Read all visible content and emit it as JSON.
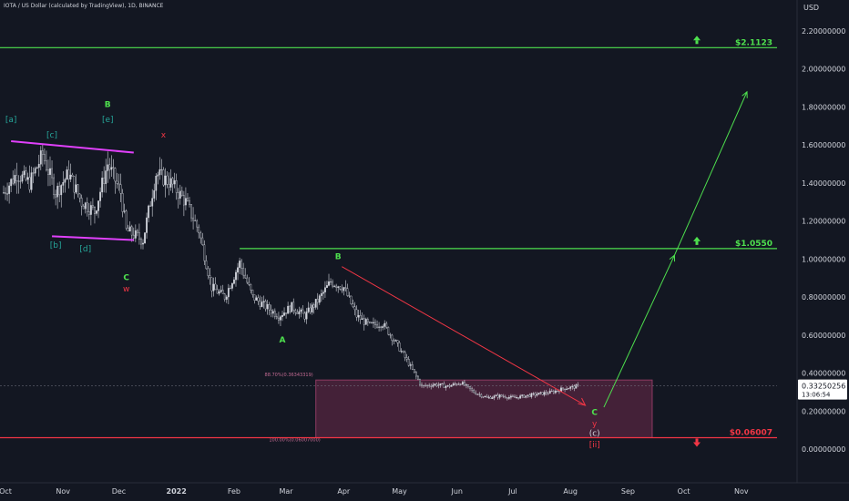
{
  "header": {
    "title": "IOTA / US Dollar (calculated by TradingView), 1D, BINANCE",
    "currency": "USD"
  },
  "colors": {
    "background": "#131722",
    "bull": "#4ee14e",
    "bear": "#f23645",
    "magenta": "#e040fb",
    "zone": "#6d2a4a",
    "teal": "#26a69a",
    "candle": "#d1d4dc"
  },
  "chart_data": {
    "type": "candlestick",
    "y_axis": {
      "min": 0,
      "max": 2.3,
      "unit": "USD",
      "ticks": [
        "0.00000000",
        "0.20000000",
        "0.40000000",
        "0.60000000",
        "0.80000000",
        "1.00000000",
        "1.20000000",
        "1.40000000",
        "1.60000000",
        "1.80000000",
        "2.00000000",
        "2.20000000"
      ]
    },
    "x_axis": {
      "ticks": [
        "Oct",
        "Nov",
        "Dec",
        "2022",
        "Feb",
        "Mar",
        "Apr",
        "May",
        "Jun",
        "Jul",
        "Aug",
        "Sep",
        "Oct",
        "Nov"
      ]
    },
    "current_price": {
      "value": 0.33250256,
      "label": "0.33250256",
      "countdown": "13:06:54"
    },
    "close_series": [
      {
        "x": "2021-10-01",
        "y": 1.35
      },
      {
        "x": "2021-10-08",
        "y": 1.45
      },
      {
        "x": "2021-10-15",
        "y": 1.4
      },
      {
        "x": "2021-10-22",
        "y": 1.55
      },
      {
        "x": "2021-10-29",
        "y": 1.35
      },
      {
        "x": "2021-11-05",
        "y": 1.45
      },
      {
        "x": "2021-11-12",
        "y": 1.3
      },
      {
        "x": "2021-11-19",
        "y": 1.25
      },
      {
        "x": "2021-11-26",
        "y": 1.5
      },
      {
        "x": "2021-12-03",
        "y": 1.35
      },
      {
        "x": "2021-12-06",
        "y": 1.15
      },
      {
        "x": "2021-12-15",
        "y": 1.1
      },
      {
        "x": "2021-12-22",
        "y": 1.45
      },
      {
        "x": "2021-12-30",
        "y": 1.4
      },
      {
        "x": "2022-01-07",
        "y": 1.3
      },
      {
        "x": "2022-01-14",
        "y": 1.15
      },
      {
        "x": "2022-01-21",
        "y": 0.85
      },
      {
        "x": "2022-01-28",
        "y": 0.8
      },
      {
        "x": "2022-02-05",
        "y": 0.98
      },
      {
        "x": "2022-02-12",
        "y": 0.8
      },
      {
        "x": "2022-02-19",
        "y": 0.75
      },
      {
        "x": "2022-02-26",
        "y": 0.7
      },
      {
        "x": "2022-03-05",
        "y": 0.75
      },
      {
        "x": "2022-03-12",
        "y": 0.7
      },
      {
        "x": "2022-03-19",
        "y": 0.78
      },
      {
        "x": "2022-03-26",
        "y": 0.88
      },
      {
        "x": "2022-04-02",
        "y": 0.85
      },
      {
        "x": "2022-04-09",
        "y": 0.7
      },
      {
        "x": "2022-04-16",
        "y": 0.65
      },
      {
        "x": "2022-04-23",
        "y": 0.66
      },
      {
        "x": "2022-04-30",
        "y": 0.56
      },
      {
        "x": "2022-05-07",
        "y": 0.45
      },
      {
        "x": "2022-05-14",
        "y": 0.33
      },
      {
        "x": "2022-05-21",
        "y": 0.34
      },
      {
        "x": "2022-05-28",
        "y": 0.33
      },
      {
        "x": "2022-06-04",
        "y": 0.35
      },
      {
        "x": "2022-06-11",
        "y": 0.3
      },
      {
        "x": "2022-06-18",
        "y": 0.27
      },
      {
        "x": "2022-06-25",
        "y": 0.28
      },
      {
        "x": "2022-07-02",
        "y": 0.27
      },
      {
        "x": "2022-07-09",
        "y": 0.28
      },
      {
        "x": "2022-07-16",
        "y": 0.29
      },
      {
        "x": "2022-07-23",
        "y": 0.3
      },
      {
        "x": "2022-07-30",
        "y": 0.32
      },
      {
        "x": "2022-08-06",
        "y": 0.33
      }
    ],
    "horizontal_levels": [
      {
        "label": "$2.1123",
        "value": 2.1123,
        "color": "#4ee14e",
        "arrow": "up"
      },
      {
        "label": "$1.0550",
        "value": 1.055,
        "color": "#4ee14e",
        "arrow": "up"
      },
      {
        "label": "$0.06007",
        "value": 0.06007,
        "color": "#f23645",
        "arrow": "down"
      }
    ],
    "zone": {
      "upper_label": "88.70%(0.36343319)",
      "upper": 0.3634,
      "lower_label": "100.00%(0.06007000)",
      "lower": 0.06007,
      "from": "2022-03-18",
      "to": "2022-09-15"
    },
    "projection": {
      "points": [
        {
          "x": "2022-08-20",
          "y": 0.22
        },
        {
          "x": "2022-09-27",
          "y": 1.02
        },
        {
          "x": "2022-11-05",
          "y": 1.88
        }
      ]
    },
    "trend_lines": [
      {
        "from": {
          "x": "2021-10-05",
          "y": 1.62
        },
        "to": {
          "x": "2021-12-10",
          "y": 1.56
        },
        "color": "#e040fb"
      },
      {
        "from": {
          "x": "2021-10-27",
          "y": 1.12
        },
        "to": {
          "x": "2021-12-10",
          "y": 1.1
        },
        "color": "#e040fb"
      },
      {
        "from": {
          "x": "2022-04-01",
          "y": 0.96
        },
        "to": {
          "x": "2022-08-10",
          "y": 0.23
        },
        "color": "#f23645"
      }
    ],
    "wave_labels": [
      {
        "text": "[a]",
        "x": "2021-10-05",
        "y": 1.72,
        "color": "#26a69a"
      },
      {
        "text": "[c]",
        "x": "2021-10-27",
        "y": 1.64,
        "color": "#26a69a"
      },
      {
        "text": "B",
        "x": "2021-11-26",
        "y": 1.8,
        "color": "#4ee14e"
      },
      {
        "text": "[e]",
        "x": "2021-11-26",
        "y": 1.72,
        "color": "#26a69a"
      },
      {
        "text": "x",
        "x": "2021-12-26",
        "y": 1.64,
        "color": "#f23645"
      },
      {
        "text": "[b]",
        "x": "2021-10-29",
        "y": 1.06,
        "color": "#26a69a"
      },
      {
        "text": "[d]",
        "x": "2021-11-14",
        "y": 1.04,
        "color": "#26a69a"
      },
      {
        "text": "C",
        "x": "2021-12-06",
        "y": 0.89,
        "color": "#4ee14e"
      },
      {
        "text": "w",
        "x": "2021-12-06",
        "y": 0.83,
        "color": "#f23645"
      },
      {
        "text": "B",
        "x": "2022-03-30",
        "y": 1.0,
        "color": "#4ee14e"
      },
      {
        "text": "A",
        "x": "2022-02-28",
        "y": 0.56,
        "color": "#4ee14e"
      },
      {
        "text": "C",
        "x": "2022-08-15",
        "y": 0.18,
        "color": "#4ee14e"
      },
      {
        "text": "y",
        "x": "2022-08-15",
        "y": 0.12,
        "color": "#f23645"
      },
      {
        "text": "(c)",
        "x": "2022-08-15",
        "y": 0.07,
        "color": "#d1d4dc"
      },
      {
        "text": "[ii]",
        "x": "2022-08-15",
        "y": 0.01,
        "color": "#f23645"
      }
    ]
  }
}
